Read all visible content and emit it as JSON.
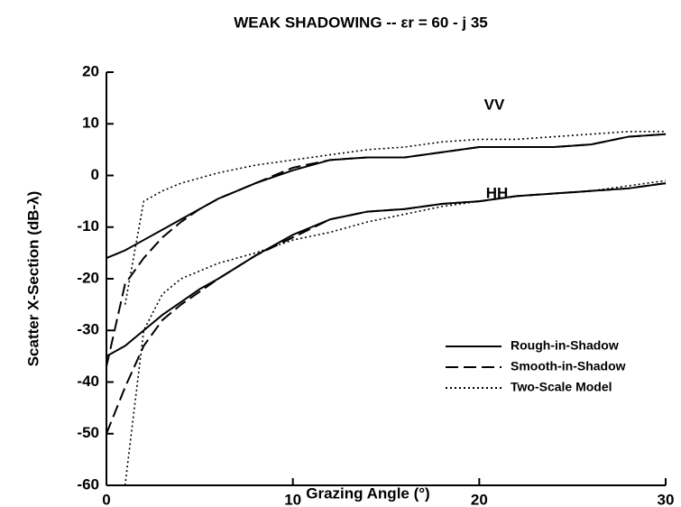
{
  "chart_data": {
    "type": "line",
    "title": "WEAK SHADOWING -- εr = 60 - j 35",
    "xlabel": "Grazing Angle (°)",
    "ylabel": "Scatter X-Section (dB-λ)",
    "annotations": [
      "VV",
      "HH"
    ],
    "x": [
      0,
      1,
      2,
      3,
      4,
      5,
      6,
      8,
      10,
      12,
      14,
      16,
      18,
      20,
      22,
      24,
      26,
      28,
      30
    ],
    "series": [
      {
        "name": "Rough-in-Shadow",
        "color": "#000000",
        "dash": "solid",
        "values": [
          -16,
          -14.5,
          -12.5,
          -10.5,
          -8.5,
          -6.5,
          -4.5,
          -1.5,
          1,
          3,
          3.5,
          3.5,
          4.5,
          5.5,
          5.5,
          5.5,
          6,
          7.5,
          8
        ]
      },
      {
        "name": "Smooth-in-Shadow",
        "color": "#000000",
        "dash": "dashed",
        "values": [
          -37,
          -21,
          -16,
          -12,
          -9,
          -6.5,
          -4.5,
          -1.5,
          1.5,
          3,
          3.5,
          3.5,
          4.5,
          5.5,
          5.5,
          5.5,
          6,
          7.5,
          8
        ]
      },
      {
        "name": "Two-Scale Model",
        "color": "#000000",
        "dash": "dotted",
        "values": [
          null,
          -25,
          -5,
          -3,
          -1.5,
          -0.5,
          0.5,
          2,
          3,
          4,
          5,
          5.5,
          6.5,
          7,
          7,
          7.5,
          8,
          8.5,
          8.5
        ]
      },
      {
        "color": "#000000",
        "dash": "solid",
        "values": [
          -35,
          -33,
          -30,
          -27,
          -24.5,
          -22,
          -20,
          -15.5,
          -11.5,
          -8.5,
          -7,
          -6.5,
          -5.5,
          -5,
          -4,
          -3.5,
          -3,
          -2.5,
          -1.5
        ]
      },
      {
        "color": "#000000",
        "dash": "dashed",
        "values": [
          -50,
          -41,
          -33,
          -28,
          -25,
          -22.5,
          -20,
          -15.5,
          -12,
          -8.5,
          -7,
          -6.5,
          -5.5,
          -5,
          -4,
          -3.5,
          -3,
          -2.5,
          -1.5
        ]
      },
      {
        "color": "#000000",
        "dash": "dotted",
        "values": [
          null,
          -60,
          -30,
          -23,
          -20,
          -18.5,
          -17,
          -15,
          -12.5,
          -11,
          -9,
          -7.5,
          -6,
          -5,
          -4,
          -3.5,
          -3,
          -2,
          -1
        ]
      }
    ],
    "xlim": [
      0,
      30
    ],
    "xticks": [
      0,
      10,
      20,
      30
    ],
    "ylim": [
      -60,
      20
    ],
    "yticks": [
      -60,
      -50,
      -40,
      -30,
      -20,
      -10,
      0,
      10,
      20
    ],
    "grid": false,
    "legend": "lower right"
  }
}
